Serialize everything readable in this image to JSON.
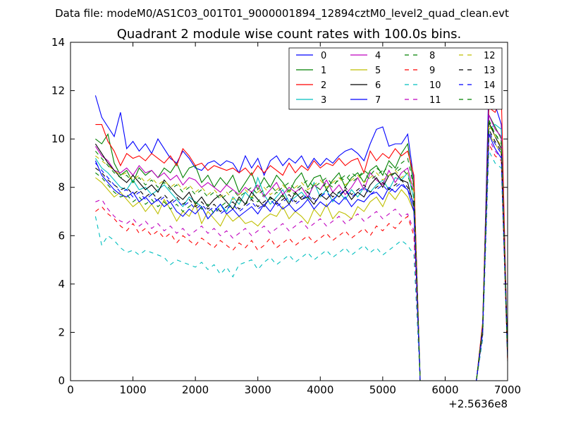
{
  "header": {
    "file_line": "Data file: modeM0/AS1C03_001T01_9000001894_12894cztM0_level2_quad_clean.evt"
  },
  "chart_data": {
    "type": "line",
    "title": "Quadrant 2 module wise count rates with 100.0s bins.",
    "xlabel": "",
    "ylabel": "",
    "x_offset_label": "+2.5636e8",
    "xlim": [
      0,
      7000
    ],
    "ylim": [
      0,
      14
    ],
    "x_ticks": [
      0,
      1000,
      2000,
      3000,
      4000,
      5000,
      6000,
      7000
    ],
    "y_ticks": [
      0,
      2,
      4,
      6,
      8,
      10,
      12,
      14
    ],
    "legend_position": "top-right",
    "grid": false,
    "x": [
      400,
      500,
      600,
      700,
      800,
      900,
      1000,
      1100,
      1200,
      1300,
      1400,
      1500,
      1600,
      1700,
      1800,
      1900,
      2000,
      2100,
      2200,
      2300,
      2400,
      2500,
      2600,
      2700,
      2800,
      2900,
      3000,
      3100,
      3200,
      3300,
      3400,
      3500,
      3600,
      3700,
      3800,
      3900,
      4000,
      4100,
      4200,
      4300,
      4400,
      4500,
      4600,
      4700,
      4800,
      4900,
      5000,
      5100,
      5200,
      5300,
      5400,
      5500,
      5600,
      6500,
      6600,
      6700,
      6800,
      6900,
      7000
    ],
    "series": [
      {
        "name": "0",
        "color": "#0000ff",
        "dash": "solid",
        "values": [
          11.8,
          10.9,
          10.5,
          10.1,
          11.1,
          9.6,
          9.9,
          9.5,
          9.8,
          9.4,
          10.0,
          9.6,
          9.2,
          9.0,
          9.5,
          9.2,
          8.8,
          8.7,
          9.0,
          9.1,
          8.9,
          9.1,
          9.0,
          8.6,
          9.3,
          8.8,
          9.2,
          8.5,
          9.1,
          9.3,
          8.9,
          9.2,
          9.0,
          9.3,
          8.8,
          9.2,
          8.9,
          9.2,
          9.0,
          9.3,
          9.5,
          9.6,
          9.4,
          9.1,
          9.8,
          10.4,
          10.5,
          9.7,
          9.8,
          9.8,
          10.2,
          8.3,
          0,
          0,
          2.0,
          12.3,
          11.4,
          10.6,
          1.2
        ]
      },
      {
        "name": "1",
        "color": "#008000",
        "dash": "solid",
        "values": [
          10.0,
          9.8,
          10.2,
          9.0,
          8.5,
          8.7,
          8.2,
          8.8,
          8.5,
          8.7,
          8.4,
          8.8,
          8.6,
          9.0,
          8.4,
          8.8,
          8.9,
          8.2,
          8.5,
          8.0,
          8.4,
          8.1,
          8.5,
          7.8,
          8.2,
          8.6,
          7.9,
          8.4,
          8.0,
          8.5,
          8.2,
          7.8,
          8.3,
          8.6,
          8.0,
          8.4,
          8.5,
          7.9,
          8.3,
          8.6,
          8.0,
          8.4,
          8.6,
          8.2,
          8.7,
          8.9,
          8.5,
          9.1,
          8.8,
          9.4,
          9.8,
          8.0,
          0,
          0,
          2.3,
          11.0,
          10.5,
          10.0,
          1.0
        ]
      },
      {
        "name": "2",
        "color": "#ff0000",
        "dash": "solid",
        "values": [
          10.6,
          10.6,
          9.9,
          9.5,
          8.9,
          9.4,
          9.2,
          9.3,
          9.1,
          9.4,
          9.2,
          9.0,
          9.3,
          8.9,
          9.6,
          9.3,
          8.9,
          9.0,
          8.7,
          8.9,
          8.8,
          8.7,
          8.8,
          8.6,
          8.8,
          8.5,
          8.9,
          8.6,
          8.9,
          8.7,
          8.5,
          9.0,
          8.6,
          8.9,
          8.7,
          9.1,
          8.8,
          9.0,
          8.9,
          9.2,
          8.9,
          9.1,
          9.2,
          8.6,
          9.5,
          9.1,
          9.4,
          9.2,
          9.6,
          9.3,
          9.5,
          8.5,
          0,
          0,
          2.4,
          11.3,
          11.1,
          11.8,
          0.8
        ]
      },
      {
        "name": "3",
        "color": "#00bfbf",
        "dash": "solid",
        "values": [
          9.2,
          8.8,
          8.6,
          8.3,
          8.0,
          7.9,
          8.3,
          7.9,
          8.0,
          7.7,
          7.9,
          8.1,
          7.8,
          7.5,
          7.2,
          7.6,
          7.4,
          7.2,
          6.7,
          7.0,
          7.3,
          7.0,
          7.6,
          7.3,
          7.8,
          7.5,
          8.4,
          7.7,
          7.3,
          7.6,
          7.9,
          7.4,
          7.6,
          7.8,
          7.5,
          8.2,
          7.6,
          7.9,
          7.4,
          7.8,
          7.5,
          7.9,
          7.6,
          8.0,
          7.8,
          8.1,
          8.3,
          7.9,
          8.4,
          8.3,
          8.6,
          7.5,
          0,
          0,
          2.2,
          10.4,
          10.6,
          10.4,
          0.9
        ]
      },
      {
        "name": "4",
        "color": "#bf00bf",
        "dash": "solid",
        "values": [
          9.7,
          9.3,
          9.1,
          8.7,
          8.6,
          8.8,
          8.5,
          8.9,
          8.6,
          8.7,
          8.4,
          8.6,
          8.3,
          8.5,
          8.1,
          8.4,
          8.3,
          8.0,
          8.2,
          8.0,
          7.8,
          8.1,
          7.9,
          7.7,
          8.0,
          7.8,
          8.1,
          7.6,
          7.9,
          8.2,
          7.7,
          8.0,
          7.8,
          8.0,
          7.6,
          8.1,
          7.9,
          8.3,
          7.8,
          8.1,
          7.7,
          8.0,
          8.4,
          7.9,
          8.6,
          8.3,
          8.1,
          8.7,
          8.2,
          8.6,
          8.8,
          7.8,
          0,
          0,
          2.1,
          11.0,
          10.4,
          10.1,
          1.1
        ]
      },
      {
        "name": "5",
        "color": "#bfbf00",
        "dash": "solid",
        "values": [
          8.4,
          8.2,
          7.9,
          7.6,
          7.8,
          7.5,
          7.2,
          7.4,
          7.0,
          7.3,
          6.9,
          7.5,
          7.1,
          6.6,
          7.0,
          6.8,
          7.3,
          6.5,
          7.0,
          6.7,
          6.4,
          6.9,
          6.6,
          6.8,
          6.5,
          6.6,
          6.4,
          6.7,
          6.9,
          6.8,
          7.2,
          6.7,
          7.0,
          6.8,
          6.5,
          7.1,
          6.8,
          7.3,
          6.7,
          7.0,
          6.9,
          6.7,
          7.2,
          7.0,
          7.4,
          7.6,
          7.2,
          7.8,
          7.5,
          7.9,
          7.6,
          7.0,
          0,
          0,
          2.0,
          10.2,
          9.8,
          9.4,
          0.9
        ]
      },
      {
        "name": "6",
        "color": "#000000",
        "dash": "solid",
        "values": [
          9.8,
          9.4,
          9.0,
          8.7,
          8.4,
          8.2,
          8.5,
          8.2,
          7.9,
          8.1,
          7.8,
          8.3,
          8.0,
          7.7,
          7.5,
          7.8,
          7.3,
          7.6,
          7.2,
          7.5,
          7.7,
          7.4,
          7.1,
          7.6,
          7.3,
          7.8,
          7.5,
          7.2,
          7.6,
          7.4,
          7.7,
          7.3,
          7.8,
          7.5,
          7.6,
          7.3,
          7.7,
          7.5,
          7.8,
          7.6,
          7.9,
          7.5,
          7.8,
          7.6,
          8.1,
          8.4,
          8.0,
          8.5,
          8.6,
          8.3,
          8.2,
          7.2,
          0,
          0,
          2.2,
          10.7,
          10.1,
          9.6,
          1.0
        ]
      },
      {
        "name": "7",
        "color": "#0000ff",
        "dash": "solid",
        "values": [
          9.1,
          8.5,
          8.2,
          7.9,
          7.7,
          7.6,
          7.8,
          7.4,
          7.6,
          7.3,
          7.5,
          7.2,
          7.4,
          7.0,
          6.8,
          7.1,
          6.9,
          7.2,
          6.7,
          7.0,
          7.3,
          6.9,
          7.1,
          6.8,
          7.0,
          7.2,
          6.9,
          7.3,
          7.0,
          7.4,
          7.1,
          7.3,
          7.0,
          7.2,
          7.5,
          7.1,
          7.4,
          7.2,
          7.5,
          7.3,
          7.6,
          7.2,
          7.5,
          7.4,
          7.7,
          7.8,
          7.5,
          8.0,
          7.8,
          8.1,
          7.9,
          7.0,
          0,
          0,
          2.1,
          10.2,
          9.6,
          9.2,
          1.0
        ]
      },
      {
        "name": "8",
        "color": "#008000",
        "dash": "dashed",
        "values": [
          8.6,
          8.4,
          8.1,
          7.8,
          7.6,
          7.7,
          7.4,
          7.6,
          7.3,
          7.5,
          7.2,
          7.4,
          7.1,
          7.3,
          7.0,
          7.2,
          7.4,
          7.1,
          7.3,
          6.9,
          7.2,
          7.4,
          7.1,
          7.5,
          7.3,
          7.6,
          7.4,
          7.7,
          7.5,
          7.8,
          7.6,
          7.9,
          7.7,
          8.0,
          7.8,
          8.1,
          7.9,
          8.2,
          8.0,
          8.4,
          8.3,
          8.6,
          8.4,
          8.7,
          8.5,
          8.8,
          8.6,
          8.9,
          8.7,
          9.0,
          9.2,
          8.0,
          0,
          0,
          2.0,
          10.8,
          10.2,
          9.8,
          1.0
        ]
      },
      {
        "name": "9",
        "color": "#ff0000",
        "dash": "dashed",
        "values": [
          7.0,
          7.2,
          6.9,
          6.7,
          6.4,
          6.2,
          6.5,
          6.1,
          6.3,
          6.0,
          6.2,
          5.9,
          6.1,
          5.7,
          6.0,
          5.8,
          5.6,
          5.9,
          5.7,
          5.5,
          5.8,
          5.6,
          5.4,
          5.7,
          5.5,
          5.8,
          5.4,
          5.6,
          5.9,
          5.5,
          5.7,
          5.9,
          5.6,
          5.8,
          6.0,
          5.7,
          5.9,
          6.1,
          5.8,
          6.0,
          6.2,
          5.9,
          6.1,
          6.3,
          6.0,
          6.4,
          6.2,
          6.5,
          6.3,
          6.6,
          6.8,
          6.0,
          0,
          0,
          1.8,
          9.8,
          9.3,
          9.1,
          0.8
        ]
      },
      {
        "name": "10",
        "color": "#00bfbf",
        "dash": "dashed",
        "values": [
          6.8,
          5.6,
          6.0,
          5.8,
          5.5,
          5.3,
          5.4,
          5.2,
          5.4,
          5.3,
          5.2,
          5.1,
          4.8,
          5.0,
          4.9,
          4.8,
          4.7,
          4.9,
          4.6,
          4.8,
          4.4,
          4.7,
          4.3,
          4.8,
          4.9,
          5.0,
          4.6,
          4.9,
          5.1,
          4.8,
          5.0,
          5.2,
          4.9,
          5.1,
          5.3,
          5.0,
          5.2,
          5.4,
          5.1,
          5.3,
          5.5,
          5.2,
          5.4,
          5.6,
          5.3,
          5.5,
          5.2,
          5.4,
          5.6,
          5.8,
          5.6,
          5.2,
          0,
          0,
          1.7,
          9.5,
          9.0,
          8.8,
          0.8
        ]
      },
      {
        "name": "11",
        "color": "#bf00bf",
        "dash": "dashed",
        "values": [
          7.4,
          7.5,
          7.1,
          6.8,
          6.6,
          6.5,
          6.7,
          6.4,
          6.6,
          6.3,
          6.5,
          6.2,
          6.4,
          6.1,
          6.3,
          6.0,
          6.2,
          6.4,
          6.1,
          6.3,
          6.0,
          6.2,
          5.9,
          6.1,
          6.3,
          6.0,
          6.2,
          6.4,
          6.1,
          6.3,
          6.5,
          6.2,
          6.4,
          6.6,
          6.3,
          6.5,
          6.7,
          6.4,
          6.6,
          6.8,
          6.5,
          6.7,
          6.9,
          6.6,
          6.8,
          7.0,
          6.7,
          6.9,
          7.1,
          6.8,
          6.9,
          6.2,
          0,
          0,
          1.9,
          10.0,
          9.5,
          9.2,
          0.9
        ]
      },
      {
        "name": "12",
        "color": "#bfbf00",
        "dash": "dashed",
        "values": [
          9.3,
          9.1,
          8.9,
          8.7,
          8.5,
          8.6,
          8.3,
          8.5,
          8.2,
          8.4,
          8.1,
          8.3,
          8.0,
          8.2,
          7.9,
          8.1,
          7.8,
          8.0,
          7.7,
          7.9,
          7.6,
          7.8,
          7.5,
          7.7,
          7.9,
          7.6,
          7.8,
          8.0,
          7.7,
          7.9,
          8.1,
          7.8,
          8.0,
          8.2,
          7.9,
          8.1,
          8.3,
          8.0,
          8.2,
          8.4,
          8.1,
          8.3,
          8.5,
          8.2,
          8.4,
          8.6,
          8.3,
          8.5,
          8.7,
          8.4,
          8.6,
          7.8,
          0,
          0,
          2.1,
          10.6,
          10.1,
          9.7,
          1.0
        ]
      },
      {
        "name": "13",
        "color": "#000000",
        "dash": "dashed",
        "values": [
          8.8,
          8.6,
          8.3,
          8.1,
          7.9,
          8.0,
          7.7,
          7.9,
          7.6,
          7.8,
          7.5,
          7.7,
          7.4,
          7.6,
          7.3,
          7.5,
          7.2,
          7.4,
          7.1,
          7.3,
          7.0,
          7.2,
          7.4,
          7.1,
          7.3,
          7.5,
          7.2,
          7.4,
          7.6,
          7.3,
          7.5,
          7.7,
          7.4,
          7.6,
          7.8,
          7.5,
          7.7,
          7.9,
          7.6,
          7.8,
          8.0,
          7.7,
          7.9,
          8.1,
          7.8,
          8.0,
          8.2,
          7.9,
          8.1,
          8.3,
          8.0,
          7.4,
          0,
          0,
          2.0,
          10.4,
          9.9,
          9.5,
          1.0
        ]
      },
      {
        "name": "14",
        "color": "#0000ff",
        "dash": "dashed",
        "values": [
          9.0,
          8.7,
          8.4,
          8.1,
          7.8,
          7.9,
          7.6,
          7.8,
          7.5,
          7.7,
          7.4,
          7.6,
          7.3,
          7.5,
          7.2,
          7.4,
          7.1,
          7.3,
          7.0,
          7.2,
          6.9,
          7.1,
          7.3,
          7.0,
          7.2,
          7.4,
          7.1,
          7.3,
          7.5,
          7.2,
          7.4,
          7.6,
          7.3,
          7.5,
          7.7,
          7.4,
          7.6,
          7.8,
          7.5,
          7.7,
          7.9,
          7.6,
          7.8,
          8.0,
          7.7,
          7.9,
          8.1,
          7.8,
          8.0,
          8.2,
          7.9,
          7.3,
          0,
          0,
          2.0,
          10.3,
          9.8,
          9.4,
          1.0
        ]
      },
      {
        "name": "15",
        "color": "#008000",
        "dash": "dashed",
        "values": [
          9.5,
          9.2,
          8.9,
          8.6,
          8.4,
          8.5,
          8.2,
          8.4,
          8.1,
          8.3,
          8.0,
          8.2,
          7.9,
          8.1,
          7.8,
          8.0,
          7.7,
          7.9,
          7.6,
          7.8,
          7.5,
          7.7,
          7.9,
          7.6,
          7.8,
          8.0,
          7.7,
          7.9,
          8.1,
          7.8,
          8.0,
          8.2,
          7.9,
          8.1,
          8.3,
          8.0,
          8.2,
          8.4,
          8.1,
          8.3,
          8.5,
          8.2,
          8.4,
          8.6,
          8.3,
          8.5,
          8.7,
          8.4,
          8.6,
          8.8,
          8.5,
          7.7,
          0,
          0,
          2.1,
          10.7,
          10.2,
          9.9,
          1.0
        ]
      }
    ]
  }
}
